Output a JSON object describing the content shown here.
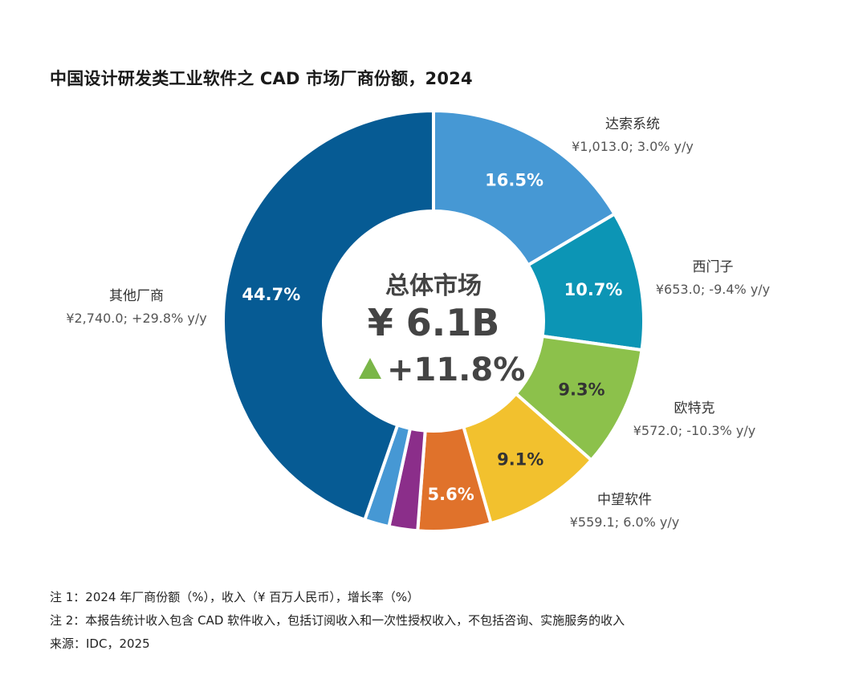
{
  "chart_data": {
    "type": "donut",
    "title": "中国设计研发类工业软件之 CAD 市场厂商份额，2024",
    "center": {
      "label": "总体市场",
      "value": "¥ 6.1B",
      "growth": "+11.8%",
      "growth_arrow_color": "#7ab648"
    },
    "slices": [
      {
        "name": "达索系统",
        "share": 16.5,
        "pct_label": "16.5%",
        "detail": "¥1,013.0; 3.0% y/y",
        "color": "#4698d4",
        "pct_color": "#ffffff"
      },
      {
        "name": "西门子",
        "share": 10.7,
        "pct_label": "10.7%",
        "detail": "¥653.0; -9.4% y/y",
        "color": "#0c95b5",
        "pct_color": "#ffffff"
      },
      {
        "name": "欧特克",
        "share": 9.3,
        "pct_label": "9.3%",
        "detail": "¥572.0; -10.3% y/y",
        "color": "#8cc14b",
        "pct_color": "#333333"
      },
      {
        "name": "中望软件",
        "share": 9.1,
        "pct_label": "9.1%",
        "detail": "¥559.1; 6.0% y/y",
        "color": "#f2c12e",
        "pct_color": "#333333"
      },
      {
        "name": "",
        "share": 5.6,
        "pct_label": "5.6%",
        "detail": "",
        "color": "#e0722b",
        "pct_color": "#ffffff"
      },
      {
        "name": "",
        "share": 2.2,
        "pct_label": "",
        "detail": "",
        "color": "#8b2e8a",
        "pct_color": "#ffffff"
      },
      {
        "name": "",
        "share": 1.9,
        "pct_label": "",
        "detail": "",
        "color": "#4698d4",
        "pct_color": "#ffffff"
      },
      {
        "name": "其他厂商",
        "share": 44.7,
        "pct_label": "44.7%",
        "detail": "¥2,740.0; +29.8% y/y",
        "color": "#065b94",
        "pct_color": "#ffffff"
      }
    ]
  },
  "notes": [
    "注 1：2024 年厂商份额（%），收入（¥ 百万人民币），增长率（%）",
    "注 2：本报告统计收入包含 CAD 软件收入，包括订阅收入和一次性授权收入，不包括咨询、实施服务的收入",
    "来源：IDC，2025"
  ]
}
